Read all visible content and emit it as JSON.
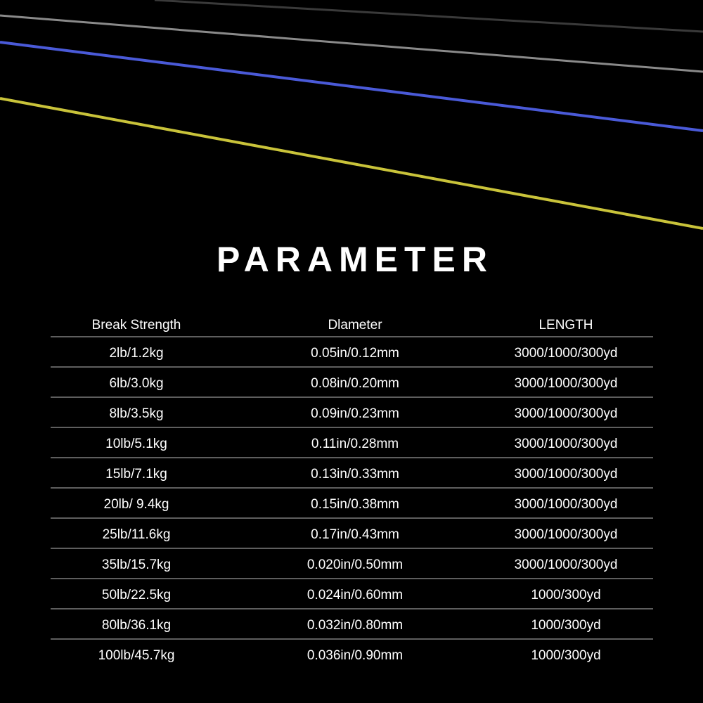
{
  "title": "PARAMETER",
  "table": {
    "header": [
      "Break Strength",
      "Dlameter",
      "LENGTH"
    ],
    "rows": [
      [
        "2lb/1.2kg",
        "0.05in/0.12mm",
        "3000/1000/300yd"
      ],
      [
        "6lb/3.0kg",
        "0.08in/0.20mm",
        "3000/1000/300yd"
      ],
      [
        "8lb/3.5kg",
        "0.09in/0.23mm",
        "3000/1000/300yd"
      ],
      [
        "10lb/5.1kg",
        "0.11in/0.28mm",
        "3000/1000/300yd"
      ],
      [
        "15lb/7.1kg",
        "0.13in/0.33mm",
        "3000/1000/300yd"
      ],
      [
        "20lb/ 9.4kg",
        "0.15in/0.38mm",
        "3000/1000/300yd"
      ],
      [
        "25lb/11.6kg",
        "0.17in/0.43mm",
        "3000/1000/300yd"
      ],
      [
        "35lb/15.7kg",
        "0.020in/0.50mm",
        "3000/1000/300yd"
      ],
      [
        "50lb/22.5kg",
        "0.024in/0.60mm",
        "1000/300yd"
      ],
      [
        "80lb/36.1kg",
        "0.032in/0.80mm",
        "1000/300yd"
      ],
      [
        "100lb/45.7kg",
        "0.036in/0.90mm",
        "1000/300yd"
      ]
    ]
  }
}
